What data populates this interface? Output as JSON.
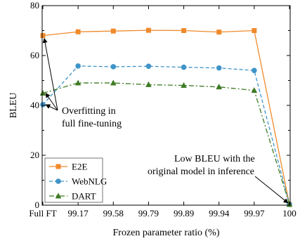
{
  "chart_data": {
    "type": "line",
    "xlabel": "Frozen parameter ratio (%)",
    "ylabel": "BLEU",
    "categories": [
      "Full FT",
      "99.17",
      "99.58",
      "99.79",
      "99.89",
      "99.94",
      "99.97",
      "100"
    ],
    "ylim": [
      0,
      80
    ],
    "yticks": [
      0,
      20,
      40,
      60,
      80
    ],
    "grid": false,
    "legend_position": "bottom-left",
    "series": [
      {
        "name": "E2E",
        "color": "#f08a2c",
        "dash": "solid",
        "marker": "square",
        "values": [
          68.0,
          69.5,
          69.8,
          70.1,
          70.0,
          69.4,
          70.0,
          0.3
        ]
      },
      {
        "name": "WebNLG",
        "color": "#3f94c8",
        "dash": "dashed",
        "marker": "circle",
        "values": [
          40.3,
          55.8,
          55.5,
          55.7,
          55.3,
          55.0,
          54.0,
          0.3
        ]
      },
      {
        "name": "DART",
        "color": "#3e7a22",
        "dash": "dashdot",
        "marker": "triangle",
        "values": [
          44.9,
          49.0,
          49.0,
          48.3,
          48.0,
          47.4,
          46.0,
          0.3
        ]
      }
    ],
    "annotations": [
      {
        "lines": [
          "Overfitting in",
          "full fine-tuning"
        ]
      },
      {
        "lines": [
          "Low BLEU with the",
          "original model in inference"
        ]
      }
    ]
  }
}
